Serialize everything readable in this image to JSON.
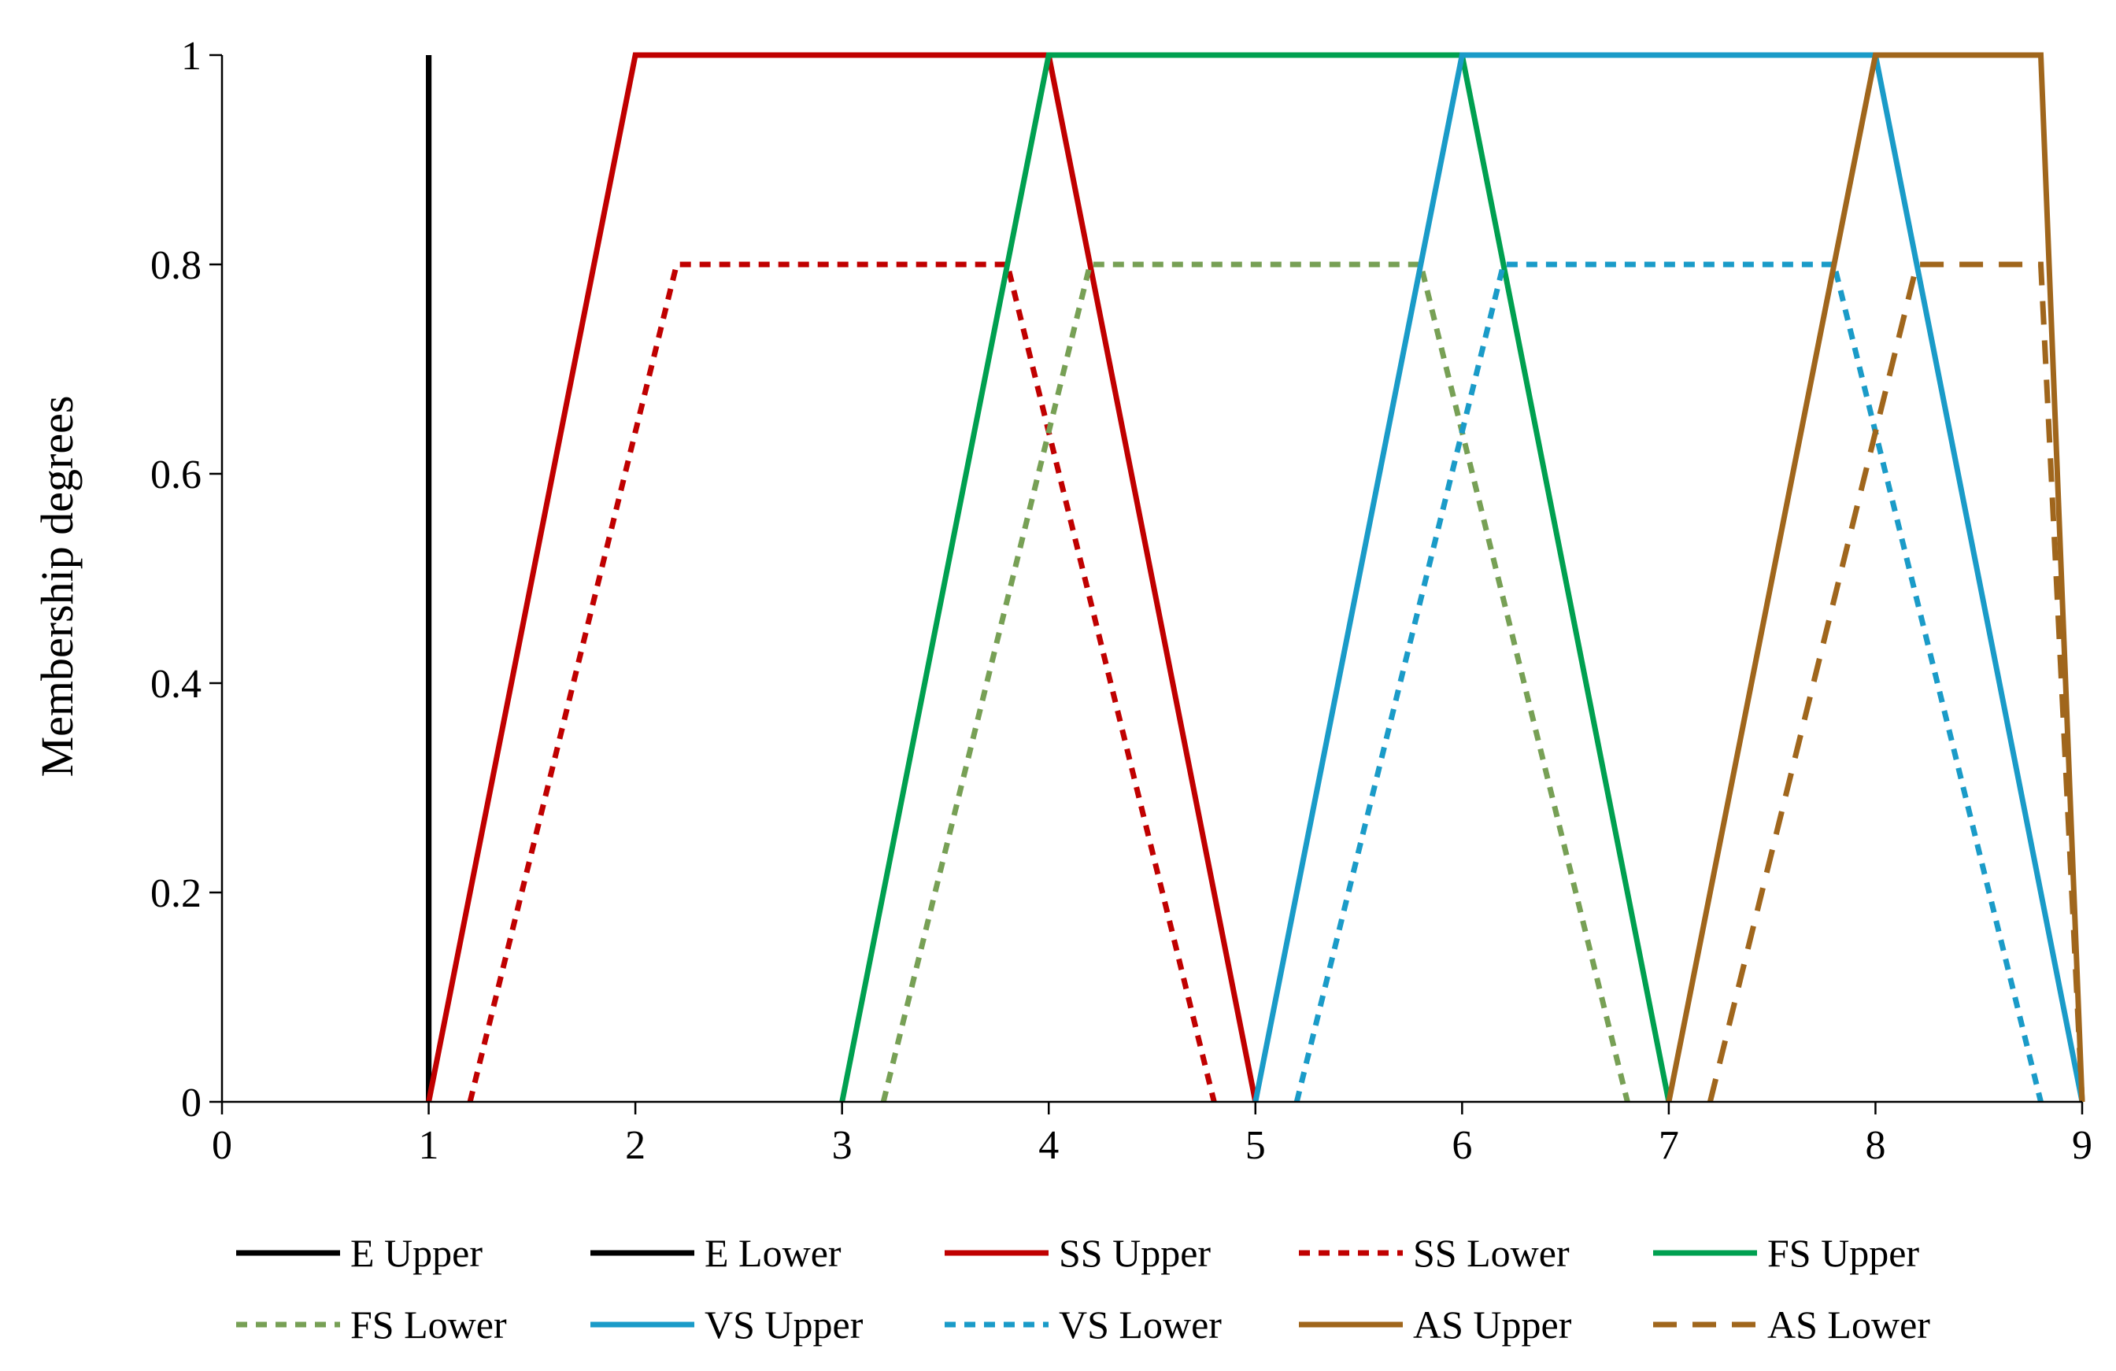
{
  "chart_data": {
    "type": "line",
    "title": "",
    "xlabel": "",
    "ylabel": "Membership degrees",
    "xlim": [
      0,
      9
    ],
    "ylim": [
      0,
      1
    ],
    "x_ticks": [
      "0",
      "1",
      "2",
      "3",
      "4",
      "5",
      "6",
      "7",
      "8",
      "9"
    ],
    "y_ticks": [
      "0",
      "0.2",
      "0.4",
      "0.6",
      "0.8",
      "1"
    ],
    "grid": false,
    "legend": "bottom",
    "series": [
      {
        "name": "E Upper",
        "color": "#000000",
        "dash": "solid",
        "x": [
          1,
          1,
          1,
          1
        ],
        "y": [
          0,
          1,
          1,
          0
        ]
      },
      {
        "name": "E Lower",
        "color": "#000000",
        "dash": "solid",
        "x": [
          1,
          1,
          1,
          1
        ],
        "y": [
          0,
          1,
          1,
          0
        ]
      },
      {
        "name": "SS Upper",
        "color": "#c00000",
        "dash": "solid",
        "x": [
          1,
          2,
          4,
          5
        ],
        "y": [
          0,
          1,
          1,
          0
        ]
      },
      {
        "name": "SS Lower",
        "color": "#c00000",
        "dash": "short",
        "x": [
          1.2,
          2.2,
          3.8,
          4.8
        ],
        "y": [
          0,
          0.8,
          0.8,
          0
        ]
      },
      {
        "name": "FS Upper",
        "color": "#00a050",
        "dash": "solid",
        "x": [
          3,
          4,
          6,
          7
        ],
        "y": [
          0,
          1,
          1,
          0
        ]
      },
      {
        "name": "FS Lower",
        "color": "#77a055",
        "dash": "short",
        "x": [
          3.2,
          4.2,
          5.8,
          6.8
        ],
        "y": [
          0,
          0.8,
          0.8,
          0
        ]
      },
      {
        "name": "VS Upper",
        "color": "#1a9bc8",
        "dash": "solid",
        "x": [
          5,
          6,
          8,
          9
        ],
        "y": [
          0,
          1,
          1,
          0
        ]
      },
      {
        "name": "VS Lower",
        "color": "#1a9bc8",
        "dash": "short",
        "x": [
          5.2,
          6.2,
          7.8,
          8.8
        ],
        "y": [
          0,
          0.8,
          0.8,
          0
        ]
      },
      {
        "name": "AS Upper",
        "color": "#a0661c",
        "dash": "solid",
        "x": [
          7,
          8,
          8.8,
          9
        ],
        "y": [
          0,
          1,
          1,
          0
        ]
      },
      {
        "name": "AS Lower",
        "color": "#a0661c",
        "dash": "long",
        "x": [
          7.2,
          8.2,
          8.8,
          9
        ],
        "y": [
          0,
          0.8,
          0.8,
          0
        ]
      }
    ]
  }
}
